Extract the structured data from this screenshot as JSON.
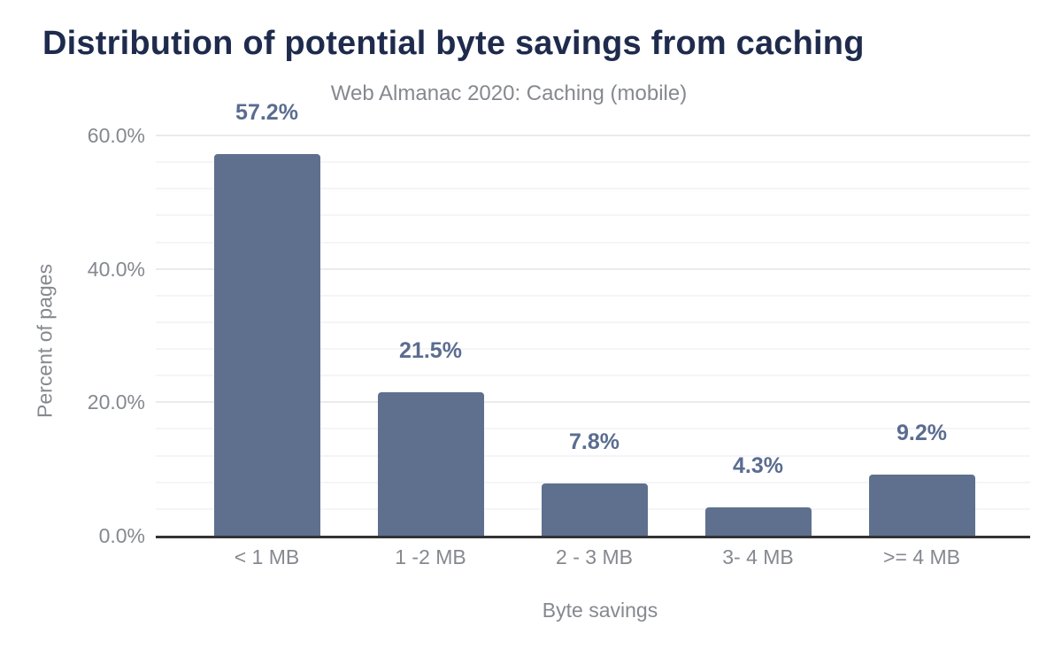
{
  "title": "Distribution of potential byte savings from caching",
  "subtitle": "Web Almanac 2020: Caching (mobile)",
  "chart_data": {
    "type": "bar",
    "categories": [
      "< 1 MB",
      "1 -2 MB",
      "2 - 3 MB",
      "3- 4 MB",
      ">= 4 MB"
    ],
    "values": [
      57.2,
      21.5,
      7.8,
      4.3,
      9.2
    ],
    "data_labels": [
      "57.2%",
      "21.5%",
      "7.8%",
      "4.3%",
      "9.2%"
    ],
    "title": "Distribution of potential byte savings from caching",
    "subtitle": "Web Almanac 2020: Caching (mobile)",
    "xlabel": "Byte savings",
    "ylabel": "Percent of pages",
    "ylim": [
      0,
      60
    ],
    "y_ticks": [
      "0.0%",
      "20.0%",
      "40.0%",
      "60.0%"
    ],
    "y_tick_values": [
      0,
      20,
      40,
      60
    ],
    "minor_grid_step": 4,
    "grid": true,
    "legend": "none",
    "colors": {
      "bar": "#5e708e",
      "data_label": "#5a6c90",
      "title": "#1e2b4d",
      "axis_text": "#85898f",
      "grid_major": "#ebebeb",
      "grid_minor": "#f5f5f7",
      "axis_line": "#333333"
    }
  }
}
